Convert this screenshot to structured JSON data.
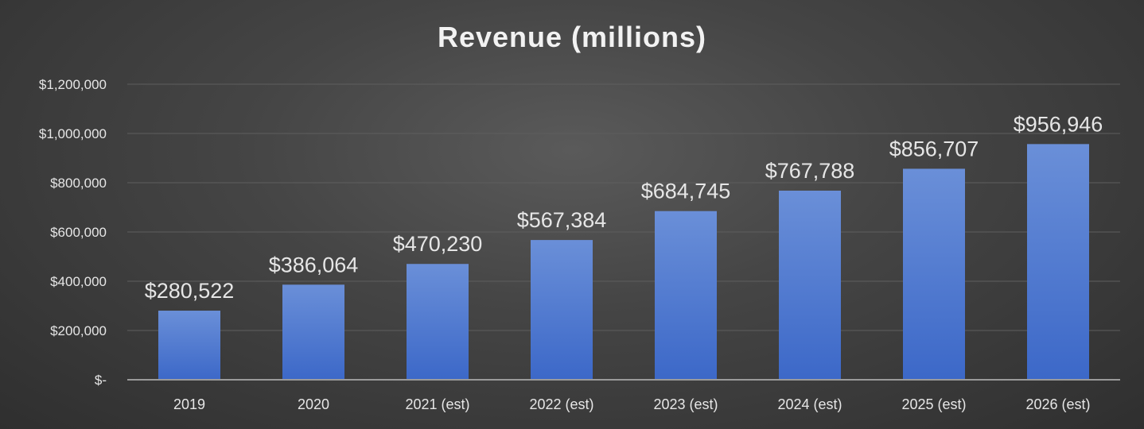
{
  "chart_data": {
    "type": "bar",
    "title": "Revenue (millions)",
    "categories": [
      "2019",
      "2020",
      "2021 (est)",
      "2022 (est)",
      "2023 (est)",
      "2024 (est)",
      "2025 (est)",
      "2026 (est)"
    ],
    "values": [
      280522,
      386064,
      470230,
      567384,
      684745,
      767788,
      856707,
      956946
    ],
    "value_labels": [
      "$280,522",
      "$386,064",
      "$470,230",
      "$567,384",
      "$684,745",
      "$767,788",
      "$856,707",
      "$956,946"
    ],
    "y_ticks": [
      0,
      200000,
      400000,
      600000,
      800000,
      1000000,
      1200000
    ],
    "y_tick_labels": [
      "$-",
      "$200,000",
      "$400,000",
      "$600,000",
      "$800,000",
      "$1,000,000",
      "$1,200,000"
    ],
    "ylim": [
      0,
      1200000
    ],
    "grid": true,
    "legend": "none",
    "colors": {
      "bar_top": "#6a8fd8",
      "bar_bottom": "#3c68c8",
      "text": "#e6e6e6",
      "gridline": "#5e5e5e",
      "axis": "#9a9a9a"
    }
  }
}
